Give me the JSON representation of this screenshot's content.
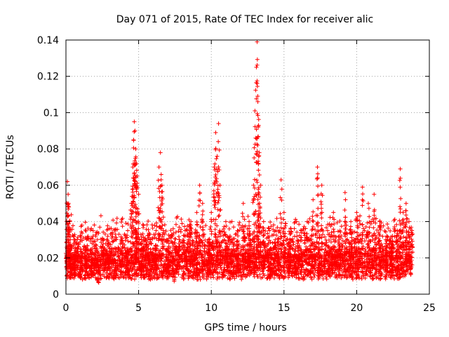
{
  "chart_data": {
    "type": "scatter",
    "title": "Day 071 of 2015, Rate Of TEC Index for receiver alic",
    "xlabel": "GPS time / hours",
    "ylabel": "ROTI / TECUs",
    "xlim": [
      0,
      25
    ],
    "ylim": [
      0,
      0.14
    ],
    "xticks": [
      0,
      5,
      10,
      15,
      20,
      25
    ],
    "xtick_labels": [
      "0",
      "5",
      "10",
      "15",
      "20",
      "25"
    ],
    "yticks": [
      0,
      0.02,
      0.04,
      0.06,
      0.08,
      0.1,
      0.12,
      0.14
    ],
    "ytick_labels": [
      "0",
      "0.02",
      "0.04",
      "0.06",
      "0.08",
      "0.1",
      "0.12",
      "0.14"
    ],
    "grid": true,
    "marker": "+",
    "color": "#ff0000",
    "series": [
      {
        "name": "ROTI",
        "x": [
          0.1,
          0.15,
          0.2,
          0.25,
          0.3,
          0.4,
          0.6,
          0.8,
          1.0,
          1.4,
          1.8,
          2.2,
          2.6,
          3.0,
          3.4,
          3.8,
          4.2,
          4.5,
          4.6,
          4.65,
          4.7,
          4.75,
          4.8,
          4.85,
          4.9,
          5.0,
          5.2,
          5.4,
          5.8,
          6.2,
          6.4,
          6.5,
          6.6,
          7.0,
          7.4,
          7.8,
          8.2,
          8.6,
          9.0,
          9.2,
          9.4,
          9.8,
          10.0,
          10.2,
          10.3,
          10.4,
          10.5,
          10.6,
          11.0,
          11.4,
          11.8,
          12.2,
          12.6,
          12.9,
          13.0,
          13.1,
          13.15,
          13.2,
          13.25,
          13.3,
          13.4,
          13.6,
          14.0,
          14.4,
          14.8,
          15.0,
          15.4,
          15.8,
          16.2,
          16.6,
          17.0,
          17.3,
          17.6,
          18.0,
          18.4,
          18.8,
          19.2,
          19.6,
          20.0,
          20.4,
          20.8,
          21.2,
          21.6,
          22.0,
          22.4,
          22.8,
          23.0,
          23.2,
          23.4,
          23.6,
          23.8
        ],
        "y": [
          0.062,
          0.055,
          0.048,
          0.04,
          0.03,
          0.022,
          0.02,
          0.025,
          0.03,
          0.02,
          0.028,
          0.018,
          0.03,
          0.025,
          0.022,
          0.03,
          0.025,
          0.05,
          0.07,
          0.085,
          0.095,
          0.09,
          0.08,
          0.072,
          0.065,
          0.055,
          0.03,
          0.025,
          0.02,
          0.035,
          0.07,
          0.078,
          0.06,
          0.025,
          0.02,
          0.03,
          0.035,
          0.04,
          0.045,
          0.06,
          0.05,
          0.03,
          0.045,
          0.07,
          0.089,
          0.076,
          0.094,
          0.06,
          0.04,
          0.03,
          0.035,
          0.05,
          0.04,
          0.06,
          0.101,
          0.125,
          0.139,
          0.106,
          0.093,
          0.078,
          0.06,
          0.04,
          0.035,
          0.03,
          0.063,
          0.045,
          0.03,
          0.025,
          0.035,
          0.04,
          0.052,
          0.07,
          0.06,
          0.035,
          0.045,
          0.03,
          0.056,
          0.04,
          0.045,
          0.059,
          0.05,
          0.055,
          0.04,
          0.03,
          0.028,
          0.035,
          0.069,
          0.045,
          0.05,
          0.04,
          0.035
        ]
      }
    ],
    "description_of_baseline": "dense band of points between about 0.008 and 0.03 across 0–24 h"
  }
}
